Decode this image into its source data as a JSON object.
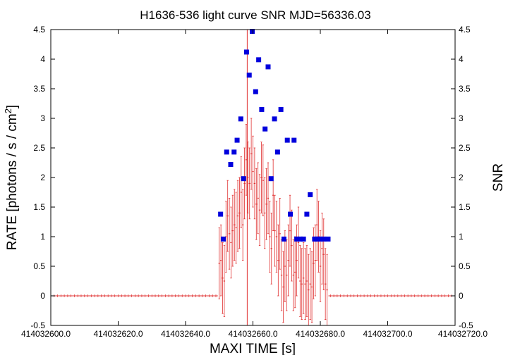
{
  "chart_data": {
    "type": "scatter",
    "title": "H1636-536 light curve  SNR MJD=56336.03",
    "xlabel": "MAXI TIME [s]",
    "ylabel": "RATE [photons / s / cm",
    "ylabel_sup": "2",
    "ylabel_end": "]",
    "y2label": "SNR",
    "xlim": [
      414032600,
      414032720
    ],
    "ylim": [
      -0.5,
      4.5
    ],
    "y2lim": [
      -0.5,
      4.5
    ],
    "xticks": [
      414032600,
      414032620,
      414032640,
      414032660,
      414032680,
      414032700,
      414032720
    ],
    "xtick_labels": [
      "414032600.0",
      "414032620.0",
      "414032640.0",
      "414032660.0",
      "414032680.0",
      "414032700.0",
      "414032720.0"
    ],
    "yticks": [
      -0.5,
      0,
      0.5,
      1,
      1.5,
      2,
      2.5,
      3,
      3.5,
      4,
      4.5
    ],
    "ytick_labels": [
      "-0.5",
      "0",
      "0.5",
      "1",
      "1.5",
      "2",
      "2.5",
      "3",
      "3.5",
      "4",
      "4.5"
    ],
    "vertical_line_x": 414032658.3,
    "grid": false,
    "colors": {
      "rate": "#e03030",
      "snr": "#0000dd",
      "vline": "#e03030"
    },
    "rate_series": {
      "name": "",
      "x": [
        414032650.0,
        414032650.5,
        414032651.0,
        414032651.5,
        414032652.0,
        414032652.5,
        414032653.0,
        414032653.5,
        414032654.0,
        414032654.5,
        414032655.0,
        414032655.5,
        414032656.0,
        414032656.5,
        414032657.0,
        414032657.5,
        414032658.0,
        414032658.5,
        414032659.0,
        414032659.5,
        414032660.0,
        414032660.5,
        414032661.0,
        414032661.5,
        414032662.0,
        414032662.5,
        414032663.0,
        414032663.5,
        414032664.0,
        414032664.5,
        414032665.0,
        414032665.5,
        414032666.0,
        414032666.5,
        414032667.0,
        414032667.5,
        414032668.0,
        414032668.5,
        414032669.0,
        414032669.5,
        414032670.0,
        414032670.5,
        414032671.0,
        414032671.5,
        414032672.0,
        414032672.5,
        414032673.0,
        414032673.5,
        414032674.0,
        414032674.5,
        414032675.0,
        414032675.5,
        414032676.0,
        414032676.5,
        414032677.0,
        414032677.5,
        414032678.0,
        414032678.5,
        414032679.0,
        414032679.5,
        414032680.0,
        414032680.5,
        414032681.0,
        414032681.5,
        414032682.0
      ],
      "y": [
        0.55,
        0.6,
        0.3,
        0.25,
        1.0,
        1.35,
        1.05,
        0.9,
        1.1,
        1.2,
        1.15,
        1.35,
        1.4,
        1.75,
        1.2,
        1.9,
        2.3,
        2.0,
        1.9,
        2.4,
        2.1,
        1.9,
        1.55,
        1.65,
        1.45,
        2.0,
        1.95,
        1.4,
        1.55,
        1.65,
        1.0,
        0.8,
        1.7,
        1.1,
        1.0,
        0.6,
        1.05,
        0.35,
        0.15,
        0.5,
        0.35,
        0.6,
        1.1,
        0.85,
        0.35,
        0.4,
        0.6,
        0.9,
        0.25,
        0.2,
        0.3,
        0.2,
        0.25,
        0.1,
        0.2,
        0.15,
        0.55,
        0.6,
        1.2,
        1.0,
        0.5,
        0.8,
        0.7,
        0.2,
        0.1
      ],
      "yerr": [
        0.6,
        0.6,
        0.6,
        0.6,
        0.6,
        0.6,
        0.6,
        0.6,
        0.6,
        0.6,
        0.6,
        0.6,
        0.6,
        0.6,
        0.6,
        0.6,
        0.6,
        0.6,
        0.6,
        0.6,
        0.6,
        0.6,
        0.6,
        0.6,
        0.6,
        0.6,
        0.6,
        0.6,
        0.6,
        0.6,
        0.6,
        0.6,
        0.6,
        0.6,
        0.6,
        0.6,
        0.6,
        0.6,
        0.6,
        0.6,
        0.6,
        0.6,
        0.6,
        0.6,
        0.6,
        0.6,
        0.6,
        0.6,
        0.6,
        0.6,
        0.6,
        0.6,
        0.6,
        0.6,
        0.6,
        0.6,
        0.6,
        0.6,
        0.6,
        0.6,
        0.6,
        0.6,
        0.6,
        0.6,
        0.6
      ]
    },
    "snr_series": {
      "name": "",
      "x": [
        414032650.4,
        414032651.2,
        414032652.2,
        414032653.4,
        414032654.4,
        414032655.3,
        414032656.4,
        414032657.2,
        414032658.1,
        414032658.9,
        414032659.8,
        414032660.8,
        414032661.7,
        414032662.6,
        414032663.6,
        414032664.5,
        414032665.4,
        414032666.4,
        414032667.3,
        414032668.3,
        414032669.2,
        414032670.2,
        414032671.1,
        414032672.2,
        414032673.0,
        414032674.0,
        414032675.0,
        414032676.0,
        414032677.0,
        414032678.3,
        414032679.0,
        414032680.0,
        414032681.0,
        414032682.3
      ],
      "y": [
        1.38,
        0.96,
        2.43,
        2.22,
        2.43,
        2.63,
        2.99,
        1.98,
        4.12,
        3.73,
        4.47,
        3.45,
        3.99,
        3.15,
        2.82,
        3.87,
        1.98,
        2.99,
        2.43,
        3.15,
        0.96,
        2.63,
        1.38,
        2.63,
        0.96,
        0.96,
        0.96,
        1.38,
        1.71,
        0.96,
        0.96,
        0.96,
        0.96,
        0.96
      ]
    }
  }
}
